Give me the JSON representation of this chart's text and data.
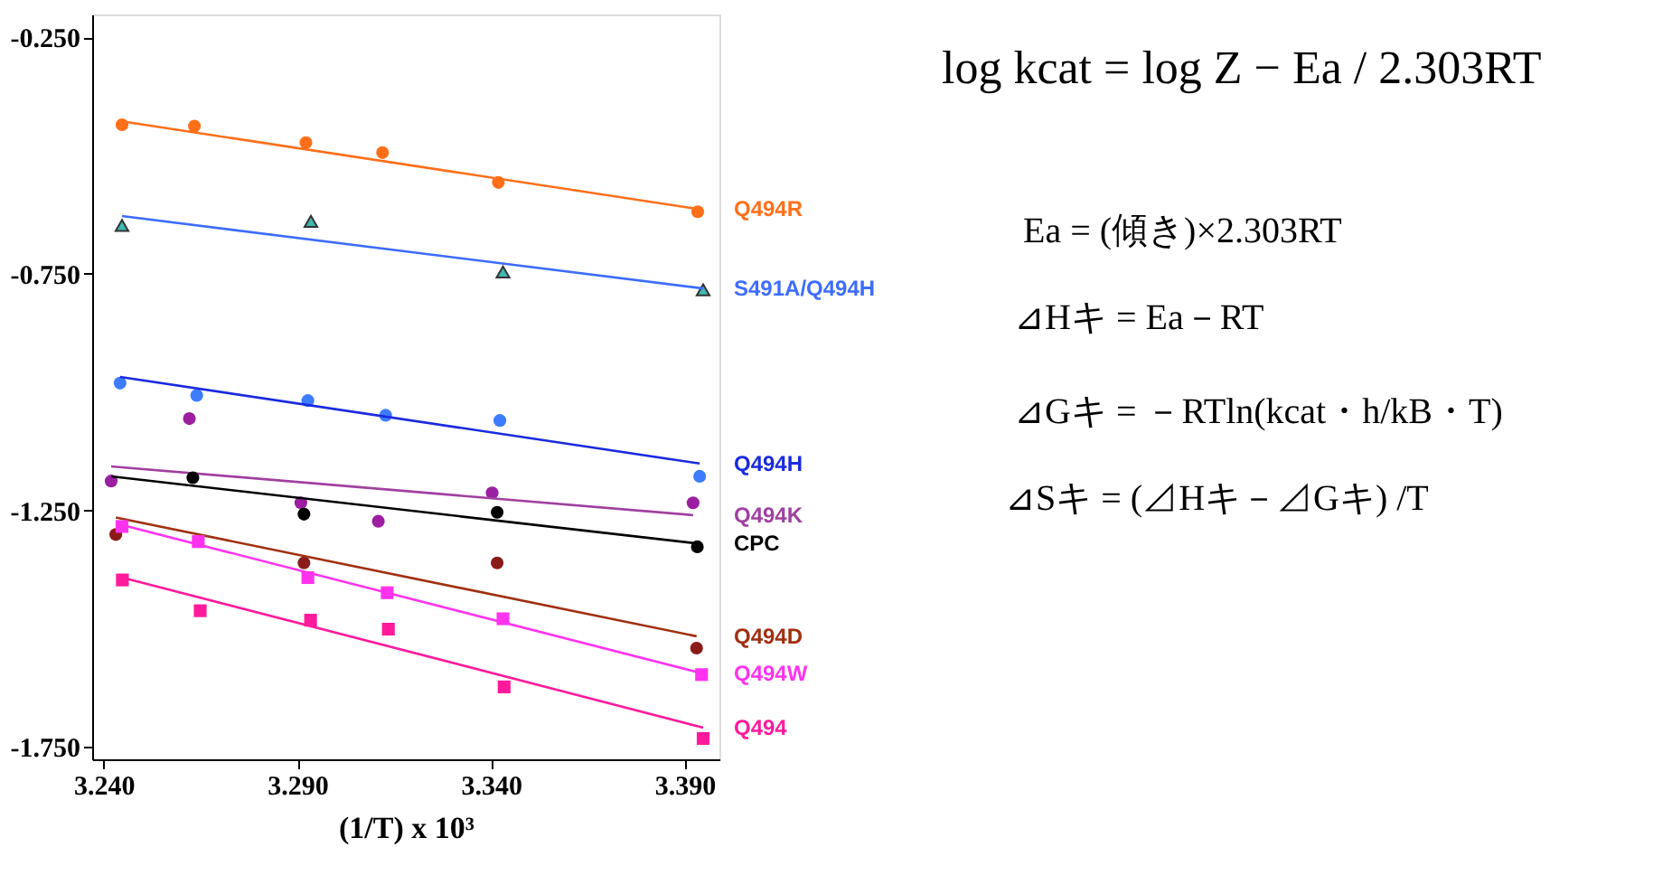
{
  "chart_data": {
    "type": "scatter",
    "xlabel": "(1/T) x 10³",
    "xlim": [
      3.237,
      3.399
    ],
    "ylim": [
      -1.776,
      -0.202
    ],
    "xticks": [
      {
        "value": 3.24,
        "label": "3.240"
      },
      {
        "value": 3.29,
        "label": "3.290"
      },
      {
        "value": 3.34,
        "label": "3.340"
      },
      {
        "value": 3.39,
        "label": "3.390"
      }
    ],
    "yticks": [
      {
        "value": -0.25,
        "label": "-0.250"
      },
      {
        "value": -0.75,
        "label": "-0.750"
      },
      {
        "value": -1.25,
        "label": "-1.250"
      },
      {
        "value": -1.75,
        "label": "-1.750"
      }
    ],
    "grid": false,
    "legend": false,
    "series": [
      {
        "marker": "circle",
        "color": "#ff6f1a",
        "x": [
          3.2447,
          3.2634,
          3.2922,
          3.312,
          3.3419,
          3.3934
        ],
        "values": [
          -0.435,
          -0.438,
          -0.473,
          -0.494,
          -0.557,
          -0.619
        ]
      },
      {
        "type": "line",
        "name": "Q494R",
        "color": "#ff6f1a",
        "x": [
          3.2447,
          3.3934
        ],
        "values": [
          -0.428,
          -0.613
        ]
      },
      {
        "marker": "triangle",
        "color": "#3fb8b0",
        "x": [
          3.2447,
          3.2935,
          3.3431,
          3.3948
        ],
        "values": [
          -0.648,
          -0.639,
          -0.746,
          -0.784
        ]
      },
      {
        "type": "line",
        "name": "S491A/Q494H",
        "color": "#3d6cff",
        "x": [
          3.2447,
          3.3948
        ],
        "values": [
          -0.628,
          -0.781
        ]
      },
      {
        "marker": "circle",
        "color": "#3d7cff",
        "x": [
          3.2442,
          3.264,
          3.2927,
          3.3128,
          3.3423,
          3.3939
        ],
        "values": [
          -0.981,
          -1.007,
          -1.018,
          -1.049,
          -1.06,
          -1.178
        ]
      },
      {
        "type": "line",
        "name": "Q494H",
        "color": "#1a2ae0",
        "x": [
          3.2442,
          3.3939
        ],
        "values": [
          -0.968,
          -1.151
        ]
      },
      {
        "marker": "circle",
        "color": "#9b1fa0",
        "x": [
          3.2419,
          3.2621,
          3.2909,
          3.3109,
          3.3403,
          3.3922
        ],
        "values": [
          -1.188,
          -1.056,
          -1.234,
          -1.273,
          -1.213,
          -1.234
        ]
      },
      {
        "type": "line",
        "name": "Q494K",
        "color": "#a040a0",
        "x": [
          3.2419,
          3.3922
        ],
        "values": [
          -1.157,
          -1.26
        ]
      },
      {
        "marker": "circle",
        "color": "#000000",
        "x": [
          3.263,
          3.2917,
          3.3416,
          3.3933
        ],
        "values": [
          -1.181,
          -1.258,
          -1.254,
          -1.327
        ]
      },
      {
        "type": "line",
        "name": "CPC",
        "color": "#000000",
        "x": [
          3.2419,
          3.3933
        ],
        "values": [
          -1.178,
          -1.32
        ]
      },
      {
        "marker": "circle",
        "color": "#8b1a1a",
        "x": [
          3.2431,
          3.2917,
          3.3416,
          3.3931
        ],
        "values": [
          -1.301,
          -1.361,
          -1.361,
          -1.541
        ]
      },
      {
        "type": "line",
        "name": "Q494D",
        "color": "#a03010",
        "x": [
          3.2431,
          3.3931
        ],
        "values": [
          -1.265,
          -1.516
        ]
      },
      {
        "marker": "square",
        "color": "#ff33ee",
        "x": [
          3.2447,
          3.2644,
          3.2927,
          3.3132,
          3.3431,
          3.3944
        ],
        "values": [
          -1.284,
          -1.316,
          -1.392,
          -1.424,
          -1.479,
          -1.597
        ]
      },
      {
        "type": "line",
        "name": "Q494W",
        "color": "#ff33ee",
        "x": [
          3.2447,
          3.3944
        ],
        "values": [
          -1.281,
          -1.594
        ]
      },
      {
        "marker": "square",
        "color": "#ff1a9c",
        "x": [
          3.2448,
          3.2649,
          3.2934,
          3.3135,
          3.3434,
          3.3948
        ],
        "values": [
          -1.397,
          -1.462,
          -1.482,
          -1.501,
          -1.623,
          -1.732
        ]
      },
      {
        "type": "line",
        "name": "Q494",
        "color": "#ff1a9c",
        "x": [
          3.2448,
          3.3948
        ],
        "values": [
          -1.392,
          -1.709
        ]
      }
    ],
    "annotations": [
      "log kcat = log Z − Ea / 2.303RT",
      "Ea = (傾き)×2.303RT",
      "⊿Hキ = Ea－RT",
      "⊿Gキ = －RTln(kcat・h/kB・T)",
      "⊿Sキ = (⊿Hキ－⊿Gキ) /T"
    ]
  }
}
